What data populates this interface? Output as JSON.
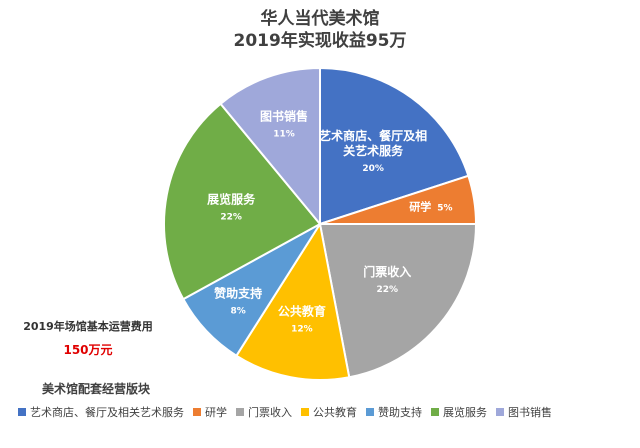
{
  "header": {
    "title_line1": "华人当代美术馆",
    "title_line2": "2019年实现收益95万"
  },
  "side_note": {
    "label": "2019年场馆基本运营费用",
    "value": "150万元",
    "value_color": "#e00000"
  },
  "legend": {
    "title": "美术馆配套经营版块"
  },
  "chart_data": {
    "type": "pie",
    "title": "华人当代美术馆 2019年实现收益95万",
    "start_angle_deg": 0,
    "direction": "clockwise",
    "slices": [
      {
        "name": "艺术商店、餐厅及相关艺术服务",
        "label_lines": [
          "艺术商店、餐厅及相",
          "关艺术服务"
        ],
        "percent": "20%",
        "value": 20,
        "color": "#4472c4"
      },
      {
        "name": "研学",
        "label_lines": [
          "研学"
        ],
        "percent": "5%",
        "value": 5,
        "color": "#ed7d31",
        "inline_percent": true
      },
      {
        "name": "门票收入",
        "label_lines": [
          "门票收入"
        ],
        "percent": "22%",
        "value": 22,
        "color": "#a5a5a5"
      },
      {
        "name": "公共教育",
        "label_lines": [
          "公共教育"
        ],
        "percent": "12%",
        "value": 12,
        "color": "#ffc000"
      },
      {
        "name": "赞助支持",
        "label_lines": [
          "赞助支持"
        ],
        "percent": "8%",
        "value": 8,
        "color": "#5b9bd5"
      },
      {
        "name": "展览服务",
        "label_lines": [
          "展览服务"
        ],
        "percent": "22%",
        "value": 22,
        "color": "#70ad47"
      },
      {
        "name": "图书销售",
        "label_lines": [
          "图书销售"
        ],
        "percent": "11%",
        "value": 11,
        "color": "#9fa8da"
      }
    ]
  }
}
